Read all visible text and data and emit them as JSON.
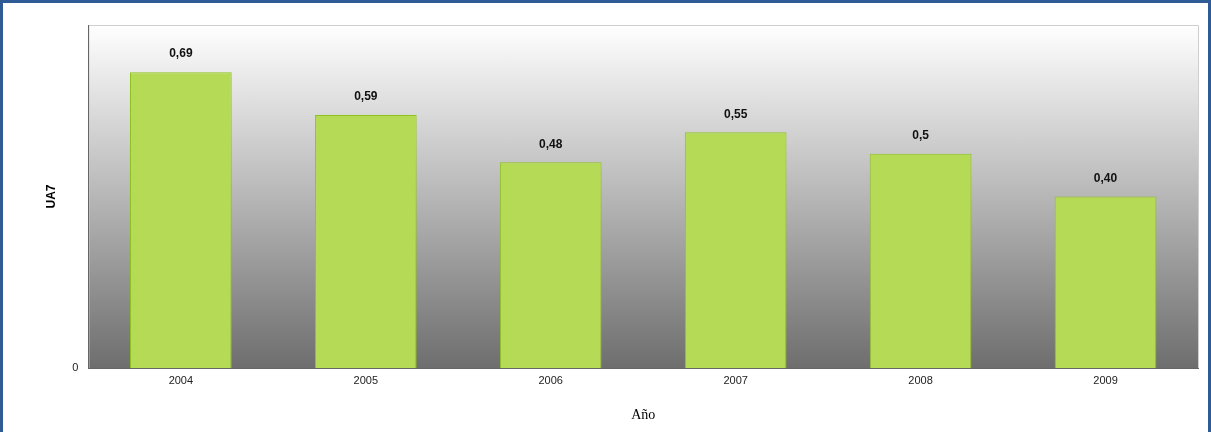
{
  "chart_data": {
    "type": "bar",
    "xlabel": "Año",
    "ylabel": "UA7",
    "categories": [
      "2004",
      "2005",
      "2006",
      "2007",
      "2008",
      "2009"
    ],
    "values": [
      0.69,
      0.59,
      0.48,
      0.55,
      0.5,
      0.4
    ],
    "value_labels": [
      "0,69",
      "0,59",
      "0,48",
      "0,55",
      "0,5",
      "0,40"
    ],
    "color": "#b5da55",
    "ylim": [
      0,
      0.8
    ],
    "annotations": [
      "0"
    ],
    "grid": false,
    "legend": false
  }
}
